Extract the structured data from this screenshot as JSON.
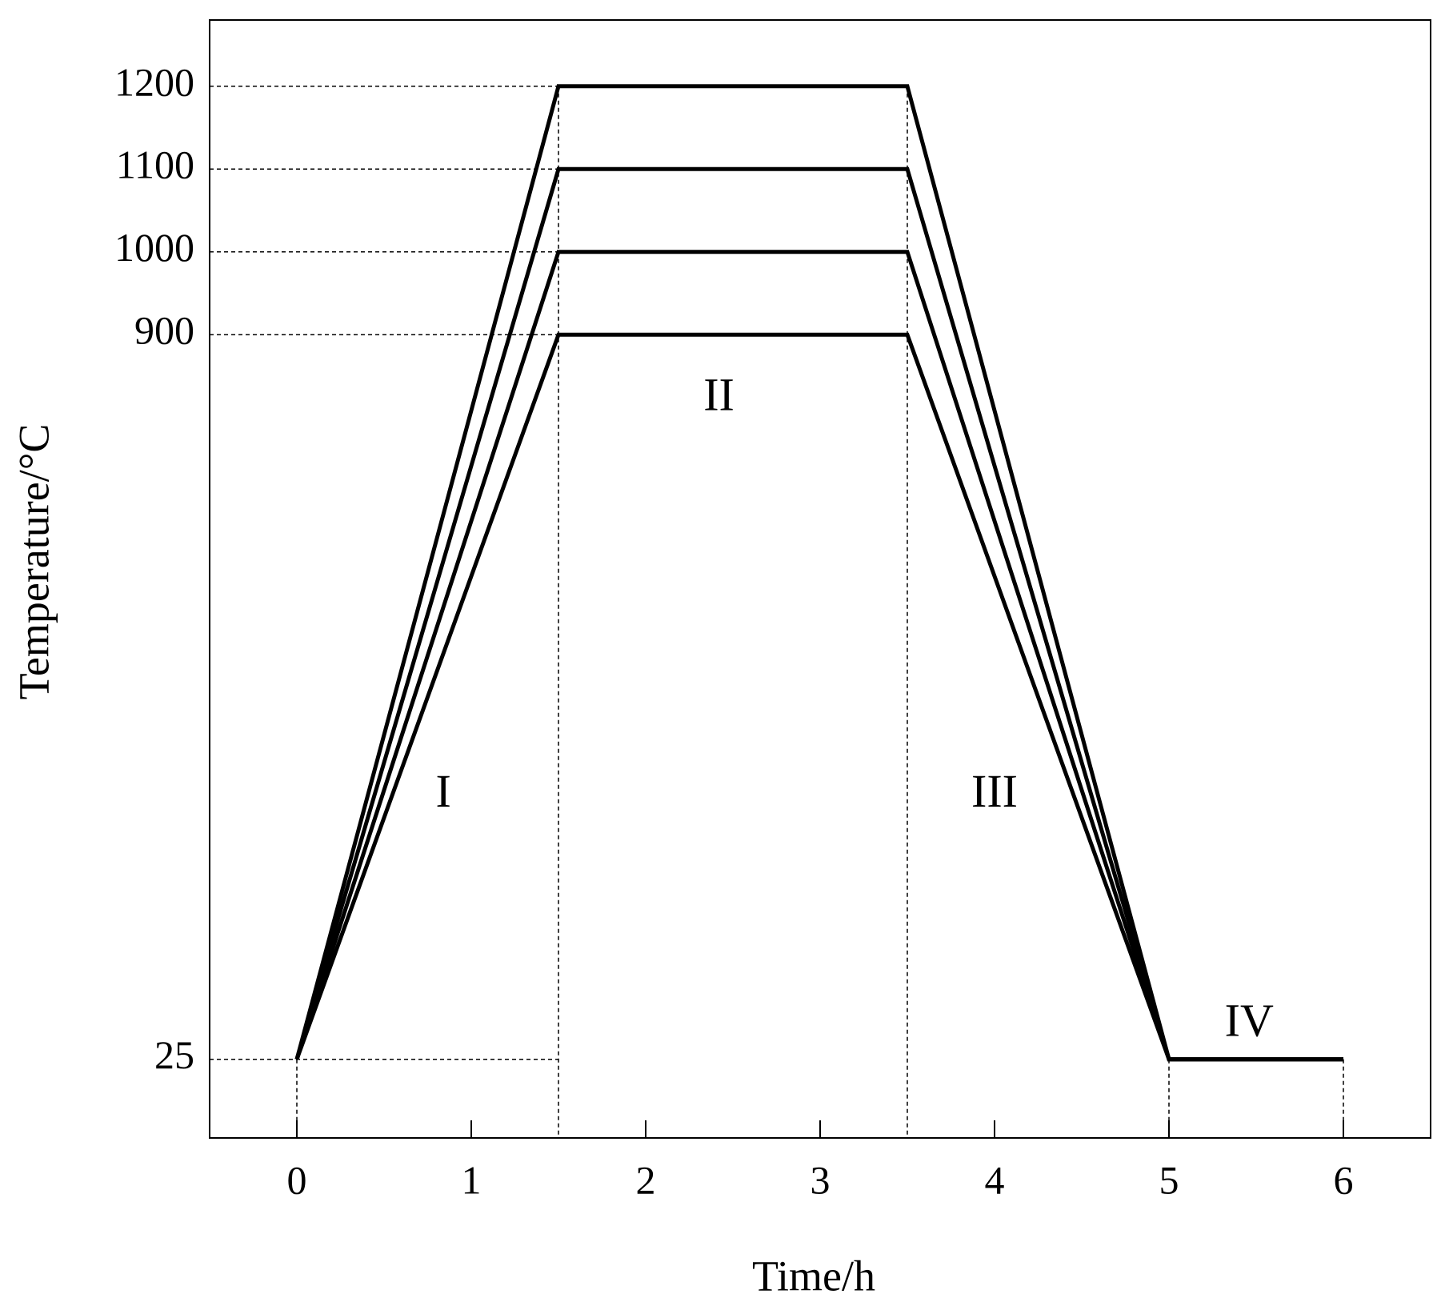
{
  "chart_data": {
    "type": "line",
    "xlabel": "Time/h",
    "ylabel": "Temperature/°C",
    "x": [
      0,
      1.5,
      3.5,
      5,
      6
    ],
    "series": [
      {
        "color": "#000000",
        "values": [
          25,
          1200,
          1200,
          25,
          25
        ]
      },
      {
        "color": "#000000",
        "values": [
          25,
          1100,
          1100,
          25,
          25
        ]
      },
      {
        "color": "#000000",
        "values": [
          25,
          1000,
          1000,
          25,
          25
        ]
      },
      {
        "color": "#000000",
        "values": [
          25,
          900,
          900,
          25,
          25
        ]
      }
    ],
    "xlim": [
      -0.5,
      6.5
    ],
    "xticks": [
      0,
      1,
      2,
      3,
      4,
      5,
      6
    ],
    "ylim": [
      -70,
      1280
    ],
    "yticks": [
      25,
      900,
      1000,
      1100,
      1200
    ],
    "annotations": [
      "I",
      "II",
      "III",
      "IV"
    ]
  }
}
